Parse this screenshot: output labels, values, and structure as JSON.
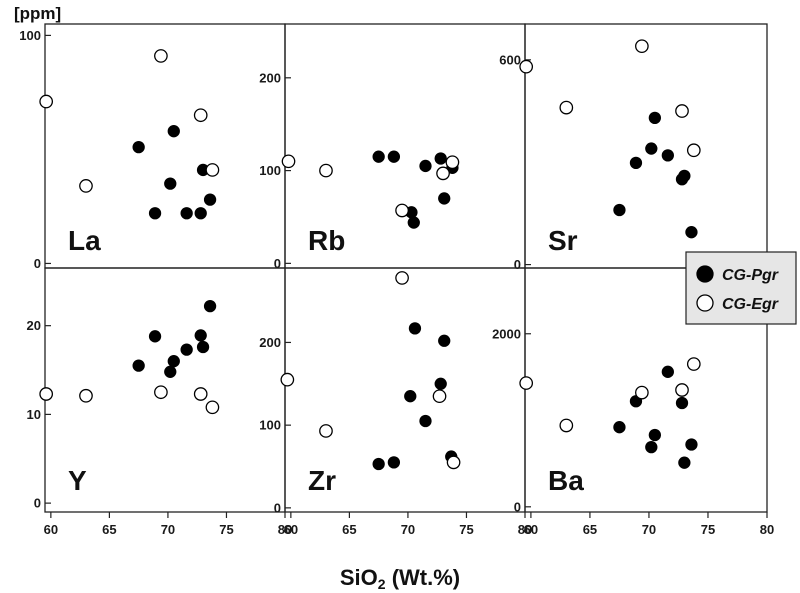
{
  "chart_data": {
    "type": "scatter",
    "unit_label": "[ppm]",
    "xlabel_main": "SiO",
    "xlabel_sub": "2",
    "xlabel_rest": " (Wt.%)",
    "xlim": [
      59.5,
      80
    ],
    "xticks": [
      60,
      65,
      70,
      75,
      80
    ],
    "legend": {
      "placement": "right",
      "entries": [
        {
          "label": "CG-Pgr",
          "marker": "filled"
        },
        {
          "label": "CG-Egr",
          "marker": "open"
        }
      ]
    },
    "panels": [
      {
        "element": "La",
        "ylim": [
          -2,
          105
        ],
        "yticks": [
          0,
          100
        ],
        "series": [
          {
            "legend": "CG-Pgr",
            "points": [
              [
                67.5,
                51
              ],
              [
                68.9,
                22
              ],
              [
                70.2,
                35
              ],
              [
                70.5,
                58
              ],
              [
                71.6,
                22
              ],
              [
                72.8,
                22
              ],
              [
                73.0,
                41
              ],
              [
                73.6,
                28
              ]
            ]
          },
          {
            "legend": "CG-Egr",
            "points": [
              [
                59.6,
                71
              ],
              [
                63.0,
                34
              ],
              [
                69.4,
                91
              ],
              [
                72.8,
                65
              ],
              [
                73.8,
                41
              ]
            ]
          }
        ]
      },
      {
        "element": "Rb",
        "ylim": [
          -5,
          258
        ],
        "yticks": [
          0,
          100,
          200
        ],
        "series": [
          {
            "legend": "CG-Pgr",
            "points": [
              [
                67.5,
                115
              ],
              [
                68.8,
                115
              ],
              [
                70.3,
                55
              ],
              [
                70.5,
                44
              ],
              [
                71.5,
                105
              ],
              [
                72.8,
                113
              ],
              [
                73.1,
                70
              ],
              [
                73.8,
                103
              ]
            ]
          },
          {
            "legend": "CG-Egr",
            "points": [
              [
                59.8,
                110
              ],
              [
                63.0,
                100
              ],
              [
                69.5,
                57
              ],
              [
                73.0,
                97
              ],
              [
                73.8,
                109
              ]
            ]
          }
        ]
      },
      {
        "element": "Sr",
        "ylim": [
          -10,
          705
        ],
        "yticks": [
          0,
          600
        ],
        "series": [
          {
            "legend": "CG-Pgr",
            "points": [
              [
                67.5,
                160
              ],
              [
                68.9,
                298
              ],
              [
                70.2,
                340
              ],
              [
                70.5,
                430
              ],
              [
                71.6,
                320
              ],
              [
                72.8,
                250
              ],
              [
                73.0,
                260
              ],
              [
                73.6,
                95
              ]
            ]
          },
          {
            "legend": "CG-Egr",
            "points": [
              [
                59.6,
                580
              ],
              [
                63.0,
                460
              ],
              [
                69.4,
                640
              ],
              [
                72.8,
                450
              ],
              [
                73.8,
                335
              ]
            ]
          }
        ]
      },
      {
        "element": "Y",
        "ylim": [
          -1,
          26.5
        ],
        "yticks": [
          0,
          10,
          20
        ],
        "series": [
          {
            "legend": "CG-Pgr",
            "points": [
              [
                67.5,
                15.5
              ],
              [
                68.9,
                18.8
              ],
              [
                70.2,
                14.8
              ],
              [
                70.5,
                16
              ],
              [
                71.6,
                17.3
              ],
              [
                72.8,
                18.9
              ],
              [
                73.0,
                17.6
              ],
              [
                73.6,
                22.2
              ]
            ]
          },
          {
            "legend": "CG-Egr",
            "points": [
              [
                59.6,
                12.3
              ],
              [
                63.0,
                12.1
              ],
              [
                69.4,
                12.5
              ],
              [
                72.8,
                12.3
              ],
              [
                73.8,
                10.8
              ]
            ]
          }
        ]
      },
      {
        "element": "Zr",
        "ylim": [
          -5,
          290
        ],
        "yticks": [
          0,
          100,
          200
        ],
        "series": [
          {
            "legend": "CG-Pgr",
            "points": [
              [
                67.5,
                53
              ],
              [
                68.8,
                55
              ],
              [
                70.2,
                135
              ],
              [
                70.6,
                217
              ],
              [
                71.5,
                105
              ],
              [
                72.8,
                150
              ],
              [
                73.1,
                202
              ],
              [
                73.7,
                62
              ]
            ]
          },
          {
            "legend": "CG-Egr",
            "points": [
              [
                59.7,
                155
              ],
              [
                63.0,
                93
              ],
              [
                69.5,
                278
              ],
              [
                72.7,
                135
              ],
              [
                73.9,
                55
              ]
            ]
          }
        ]
      },
      {
        "element": "Ba",
        "ylim": [
          -60,
          2760
        ],
        "yticks": [
          0,
          2000
        ],
        "series": [
          {
            "legend": "CG-Pgr",
            "points": [
              [
                67.5,
                920
              ],
              [
                68.9,
                1220
              ],
              [
                70.2,
                690
              ],
              [
                70.5,
                830
              ],
              [
                71.6,
                1560
              ],
              [
                72.8,
                1200
              ],
              [
                73.0,
                510
              ],
              [
                73.6,
                720
              ]
            ]
          },
          {
            "legend": "CG-Egr",
            "points": [
              [
                59.6,
                1430
              ],
              [
                63.0,
                940
              ],
              [
                69.4,
                1320
              ],
              [
                72.8,
                1350
              ],
              [
                73.8,
                1650
              ]
            ]
          }
        ]
      }
    ]
  }
}
